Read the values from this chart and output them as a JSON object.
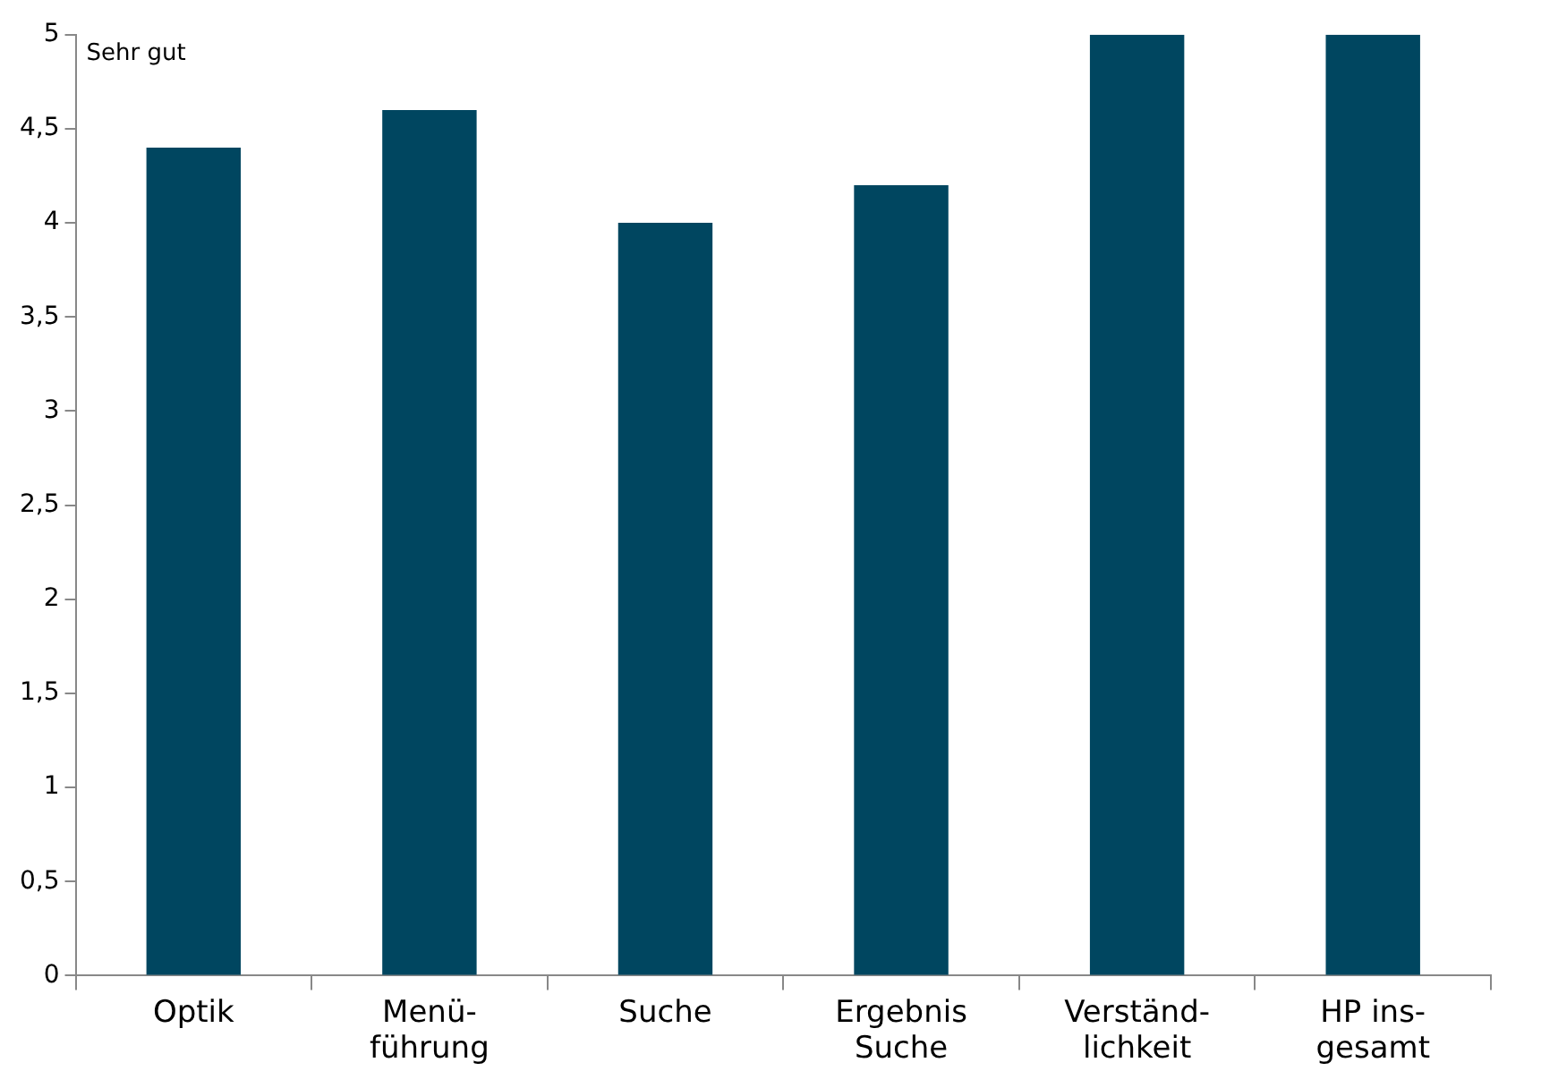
{
  "chart_data": {
    "type": "bar",
    "categories": [
      "Optik",
      "Menü-\nführung",
      "Suche",
      "Ergebnis\nSuche",
      "Verständ-\nlichkeit",
      "HP ins-\ngesamt"
    ],
    "values": [
      4.4,
      4.6,
      4.0,
      4.2,
      5,
      5
    ],
    "color": "#004660",
    "ylim": [
      0,
      5
    ],
    "yticks": [
      0,
      {
        "value": 0.5,
        "label": "0,5"
      },
      1,
      {
        "value": 1.5,
        "label": "1,5"
      },
      2,
      {
        "value": 2.5,
        "label": "2,5"
      },
      3,
      {
        "value": 3.5,
        "label": "3,5"
      },
      4,
      {
        "value": 4.5,
        "label": "4,5"
      },
      5
    ],
    "annotations": [
      "Sehr gut"
    ],
    "grid": false,
    "legend": false
  }
}
